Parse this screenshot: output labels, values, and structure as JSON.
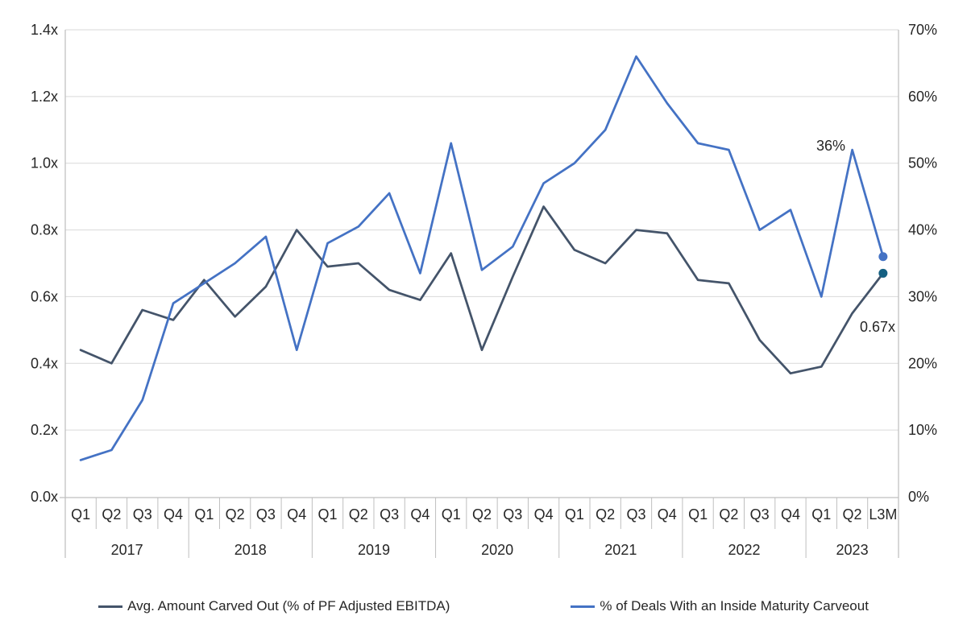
{
  "chart_data": {
    "type": "line",
    "title": "",
    "x_axis": {
      "years": [
        {
          "label": "2017",
          "quarters": [
            "Q1",
            "Q2",
            "Q3",
            "Q4"
          ]
        },
        {
          "label": "2018",
          "quarters": [
            "Q1",
            "Q2",
            "Q3",
            "Q4"
          ]
        },
        {
          "label": "2019",
          "quarters": [
            "Q1",
            "Q2",
            "Q3",
            "Q4"
          ]
        },
        {
          "label": "2020",
          "quarters": [
            "Q1",
            "Q2",
            "Q3",
            "Q4"
          ]
        },
        {
          "label": "2021",
          "quarters": [
            "Q1",
            "Q2",
            "Q3",
            "Q4"
          ]
        },
        {
          "label": "2022",
          "quarters": [
            "Q1",
            "Q2",
            "Q3",
            "Q4"
          ]
        },
        {
          "label": "2023",
          "quarters": [
            "Q1",
            "Q2",
            "L3M"
          ]
        }
      ]
    },
    "left_axis": {
      "min": 0,
      "max": 1.4,
      "tick_labels_top_to_bottom": [
        "1.4x",
        "1.2x",
        "1.0x",
        "0.8x",
        "0.6x",
        "0.4x",
        "0.2x",
        "0.0x"
      ]
    },
    "right_axis": {
      "min": 0,
      "max": 70,
      "tick_labels_top_to_bottom": [
        "70%",
        "60%",
        "50%",
        "40%",
        "30%",
        "20%",
        "10%",
        "0%"
      ]
    },
    "grid": "horizontal",
    "legend_position": "bottom",
    "series": [
      {
        "name": "Avg. Amount Carved Out (% of PF Adjusted EBITDA)",
        "axis": "left",
        "color": "#44546A",
        "end_marker_color": "#156082",
        "end_label": "0.67x",
        "values": [
          0.44,
          0.4,
          0.56,
          0.53,
          0.65,
          0.54,
          0.63,
          0.8,
          0.69,
          0.7,
          0.62,
          0.59,
          0.73,
          0.44,
          0.66,
          0.87,
          0.74,
          0.7,
          0.8,
          0.79,
          0.65,
          0.64,
          0.47,
          0.37,
          0.39,
          0.55,
          0.67
        ]
      },
      {
        "name": "% of Deals With an Inside Maturity Carveout",
        "axis": "right",
        "color": "#4472C4",
        "end_marker_color": "#4472C4",
        "end_label": "36%",
        "values": [
          5.5,
          7,
          14.5,
          29,
          32,
          35,
          39,
          22,
          38,
          40.5,
          45.5,
          33.5,
          53,
          34,
          37.5,
          47,
          50,
          55,
          66,
          59,
          53,
          52,
          40,
          43,
          30,
          52,
          36
        ]
      }
    ],
    "annotations": [
      {
        "text": "36%",
        "series": 1
      },
      {
        "text": "0.67x",
        "series": 0
      }
    ]
  },
  "legend": {
    "items": [
      {
        "label": "Avg. Amount Carved Out (% of PF Adjusted EBITDA)"
      },
      {
        "label": "% of Deals With an Inside Maturity Carveout"
      }
    ]
  }
}
